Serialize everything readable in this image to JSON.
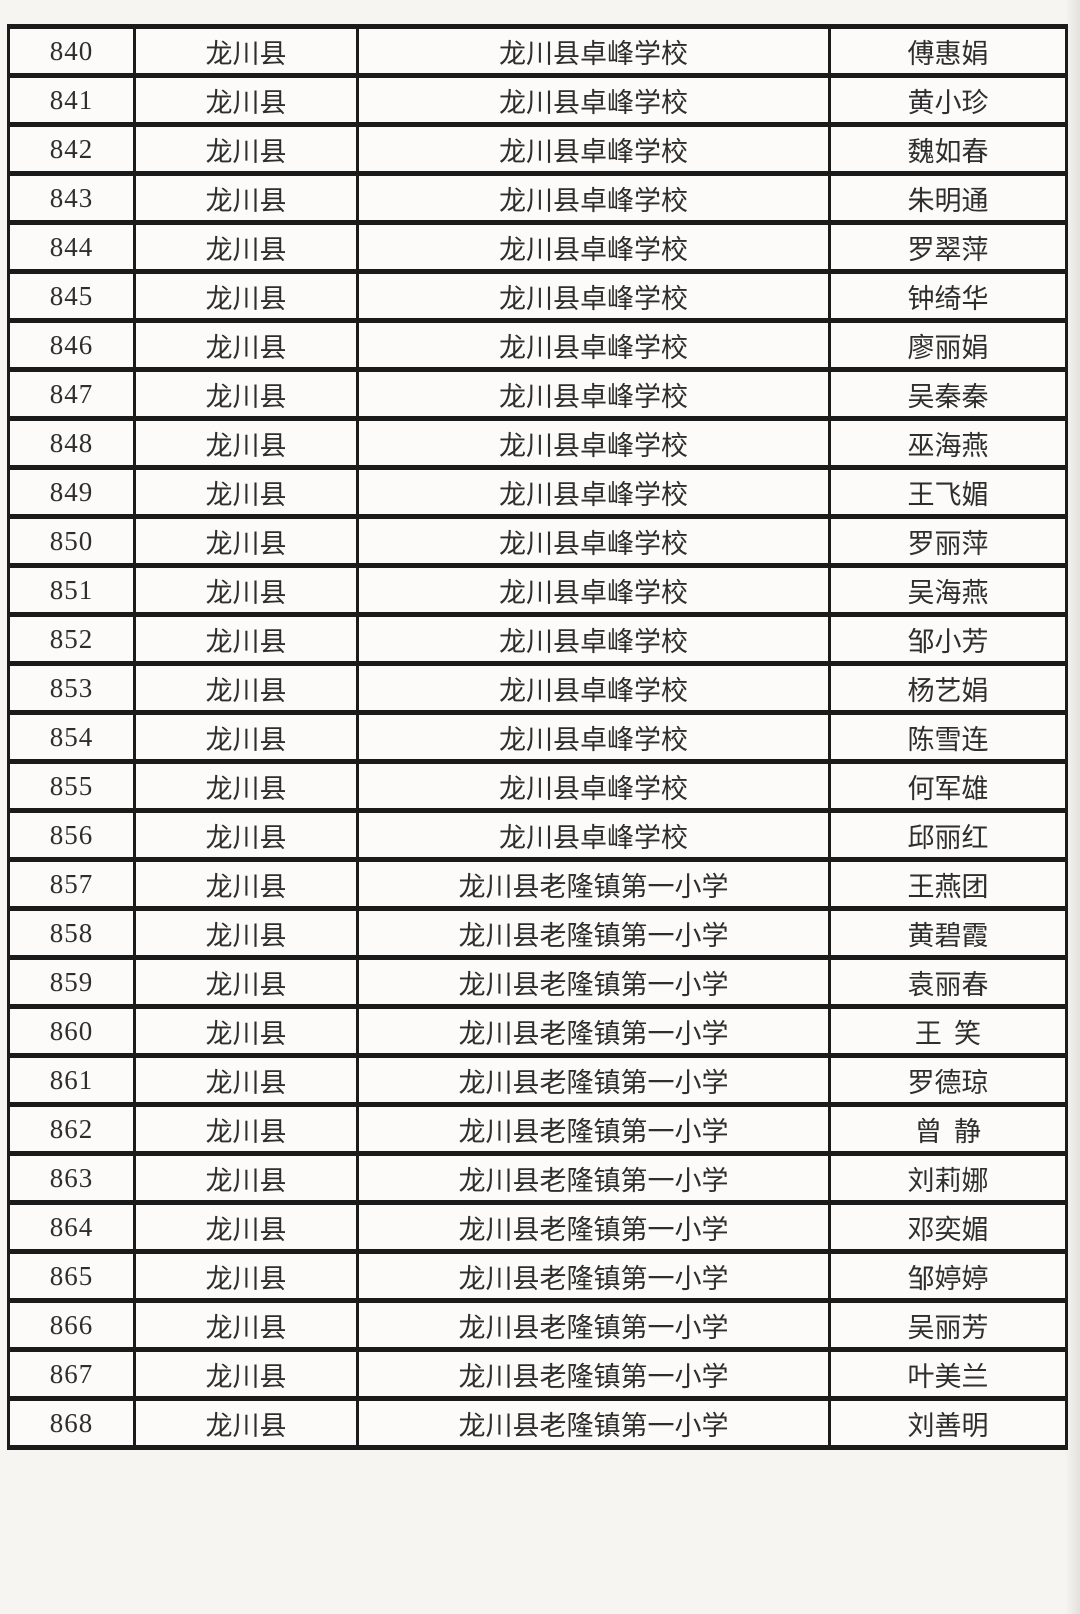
{
  "colors": {
    "page_background": "#f6f5f2",
    "cell_background": "#fcfbf9",
    "border": "#1b1b1b",
    "text": "#2e2e2e"
  },
  "table": {
    "columns": [
      "no",
      "county",
      "school",
      "name"
    ],
    "rows": [
      {
        "no": "840",
        "county": "龙川县",
        "school": "龙川县卓峰学校",
        "name": "傅惠娟"
      },
      {
        "no": "841",
        "county": "龙川县",
        "school": "龙川县卓峰学校",
        "name": "黄小珍"
      },
      {
        "no": "842",
        "county": "龙川县",
        "school": "龙川县卓峰学校",
        "name": "魏如春"
      },
      {
        "no": "843",
        "county": "龙川县",
        "school": "龙川县卓峰学校",
        "name": "朱明通"
      },
      {
        "no": "844",
        "county": "龙川县",
        "school": "龙川县卓峰学校",
        "name": "罗翠萍"
      },
      {
        "no": "845",
        "county": "龙川县",
        "school": "龙川县卓峰学校",
        "name": "钟绮华"
      },
      {
        "no": "846",
        "county": "龙川县",
        "school": "龙川县卓峰学校",
        "name": "廖丽娟"
      },
      {
        "no": "847",
        "county": "龙川县",
        "school": "龙川县卓峰学校",
        "name": "吴秦秦"
      },
      {
        "no": "848",
        "county": "龙川县",
        "school": "龙川县卓峰学校",
        "name": "巫海燕"
      },
      {
        "no": "849",
        "county": "龙川县",
        "school": "龙川县卓峰学校",
        "name": "王飞媚"
      },
      {
        "no": "850",
        "county": "龙川县",
        "school": "龙川县卓峰学校",
        "name": "罗丽萍"
      },
      {
        "no": "851",
        "county": "龙川县",
        "school": "龙川县卓峰学校",
        "name": "吴海燕"
      },
      {
        "no": "852",
        "county": "龙川县",
        "school": "龙川县卓峰学校",
        "name": "邹小芳"
      },
      {
        "no": "853",
        "county": "龙川县",
        "school": "龙川县卓峰学校",
        "name": "杨艺娟"
      },
      {
        "no": "854",
        "county": "龙川县",
        "school": "龙川县卓峰学校",
        "name": "陈雪连"
      },
      {
        "no": "855",
        "county": "龙川县",
        "school": "龙川县卓峰学校",
        "name": "何军雄"
      },
      {
        "no": "856",
        "county": "龙川县",
        "school": "龙川县卓峰学校",
        "name": "邱丽红"
      },
      {
        "no": "857",
        "county": "龙川县",
        "school": "龙川县老隆镇第一小学",
        "name": "王燕团"
      },
      {
        "no": "858",
        "county": "龙川县",
        "school": "龙川县老隆镇第一小学",
        "name": "黄碧霞"
      },
      {
        "no": "859",
        "county": "龙川县",
        "school": "龙川县老隆镇第一小学",
        "name": "袁丽春"
      },
      {
        "no": "860",
        "county": "龙川县",
        "school": "龙川县老隆镇第一小学",
        "name": "王笑"
      },
      {
        "no": "861",
        "county": "龙川县",
        "school": "龙川县老隆镇第一小学",
        "name": "罗德琼"
      },
      {
        "no": "862",
        "county": "龙川县",
        "school": "龙川县老隆镇第一小学",
        "name": "曾静"
      },
      {
        "no": "863",
        "county": "龙川县",
        "school": "龙川县老隆镇第一小学",
        "name": "刘莉娜"
      },
      {
        "no": "864",
        "county": "龙川县",
        "school": "龙川县老隆镇第一小学",
        "name": "邓奕媚"
      },
      {
        "no": "865",
        "county": "龙川县",
        "school": "龙川县老隆镇第一小学",
        "name": "邹婷婷"
      },
      {
        "no": "866",
        "county": "龙川县",
        "school": "龙川县老隆镇第一小学",
        "name": "吴丽芳"
      },
      {
        "no": "867",
        "county": "龙川县",
        "school": "龙川县老隆镇第一小学",
        "name": "叶美兰"
      },
      {
        "no": "868",
        "county": "龙川县",
        "school": "龙川县老隆镇第一小学",
        "name": "刘善明"
      }
    ]
  }
}
